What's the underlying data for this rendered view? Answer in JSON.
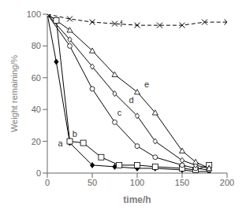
{
  "chart_data": {
    "type": "line",
    "xlabel": "time/h",
    "ylabel": "Weight remaining/%",
    "xlim": [
      0,
      200
    ],
    "ylim": [
      0,
      100
    ],
    "xticks": [
      0,
      50,
      100,
      150,
      200
    ],
    "yticks": [
      0,
      20,
      40,
      60,
      80,
      100
    ],
    "grid": false,
    "series": [
      {
        "color": "black",
        "marker": "filled_diamond",
        "line_style": "solid",
        "x": [
          0,
          10,
          25,
          50,
          75,
          100,
          120,
          150,
          165,
          180
        ],
        "values": [
          100,
          70,
          19,
          5,
          4,
          3,
          3,
          2,
          1,
          1
        ]
      },
      {
        "color": "black",
        "marker": "square",
        "line_style": "solid",
        "x": [
          0,
          10,
          25,
          40,
          60,
          80,
          100,
          120,
          150,
          165,
          180
        ],
        "values": [
          100,
          96,
          20,
          19,
          10,
          5,
          5,
          4,
          3,
          2,
          5
        ]
      },
      {
        "color": "black",
        "marker": "circle",
        "line_style": "solid",
        "x": [
          0,
          25,
          50,
          75,
          100,
          120,
          150,
          165,
          180
        ],
        "values": [
          100,
          80,
          53,
          32,
          17,
          10,
          5,
          3,
          2
        ]
      },
      {
        "color": "black",
        "marker": "diamond",
        "line_style": "solid",
        "x": [
          0,
          25,
          50,
          75,
          100,
          120,
          150,
          165,
          180
        ],
        "values": [
          100,
          84,
          67,
          50,
          36,
          20,
          8,
          5,
          3
        ]
      },
      {
        "color": "black",
        "marker": "triangle",
        "line_style": "solid",
        "x": [
          0,
          25,
          50,
          75,
          100,
          120,
          150,
          165,
          180
        ],
        "values": [
          100,
          90,
          77,
          62,
          51,
          38,
          14,
          7,
          3
        ]
      },
      {
        "color": "black",
        "marker": "cross",
        "line_style": "dashed",
        "x": [
          0,
          25,
          50,
          75,
          100,
          125,
          150,
          175,
          200
        ],
        "values": [
          100,
          97,
          95,
          94,
          93,
          93,
          93,
          95,
          95
        ]
      }
    ],
    "annotations": [
      {
        "text": "a",
        "x": 11,
        "y": 16
      },
      {
        "text": "b",
        "x": 27,
        "y": 22
      },
      {
        "text": "c",
        "x": 77,
        "y": 35
      },
      {
        "text": "d",
        "x": 90,
        "y": 43
      },
      {
        "text": "e",
        "x": 107,
        "y": 53
      },
      {
        "text": "f",
        "x": 80,
        "y": 91
      }
    ]
  }
}
